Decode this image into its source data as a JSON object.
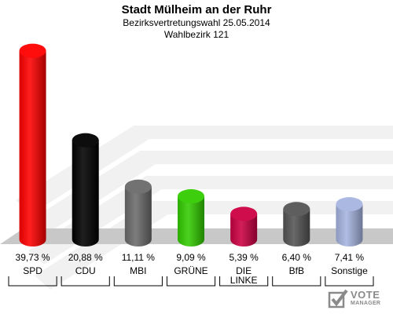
{
  "chart_data": {
    "type": "bar",
    "title": "Stadt Mülheim an der Ruhr",
    "subtitle_1": "Bezirksvertretungswahl 25.05.2014",
    "subtitle_2": "Wahlbezirk 121",
    "categories": [
      "SPD",
      "CDU",
      "MBI",
      "GRÜNE",
      "DIE LINKE",
      "BfB",
      "Sonstige"
    ],
    "category_lines": [
      [
        "SPD"
      ],
      [
        "CDU"
      ],
      [
        "MBI"
      ],
      [
        "GRÜNE"
      ],
      [
        "DIE",
        "LINKE"
      ],
      [
        "BfB"
      ],
      [
        "Sonstige"
      ]
    ],
    "values": [
      39.73,
      20.88,
      11.11,
      9.09,
      5.39,
      6.4,
      7.41
    ],
    "value_labels": [
      "39,73 %",
      "20,88 %",
      "11,11 %",
      "9,09 %",
      "5,39 %",
      "6,40 %",
      "7,41 %"
    ],
    "colors": [
      "#ff0000",
      "#000000",
      "#6b6b6b",
      "#33cc00",
      "#cc0044",
      "#555555",
      "#a6b4e0"
    ],
    "ylim": [
      0,
      40
    ]
  },
  "logo": {
    "line1": "VOTE",
    "line2": "MANAGER"
  }
}
